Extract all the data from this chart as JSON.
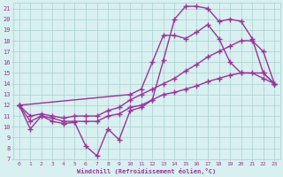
{
  "xlabel": "Windchill (Refroidissement éolien,°C)",
  "xlim": [
    -0.5,
    23.5
  ],
  "ylim": [
    7,
    21.5
  ],
  "yticks": [
    7,
    8,
    9,
    10,
    11,
    12,
    13,
    14,
    15,
    16,
    17,
    18,
    19,
    20,
    21
  ],
  "xticks": [
    0,
    1,
    2,
    3,
    4,
    5,
    6,
    7,
    8,
    9,
    10,
    11,
    12,
    13,
    14,
    15,
    16,
    17,
    18,
    19,
    20,
    21,
    22,
    23
  ],
  "curve_color": "#993399",
  "bg_color": "#d8f0f0",
  "plot_bg_color": "#d8f0f0",
  "grid_color": "#aacece",
  "curves": [
    {
      "x": [
        0,
        1,
        2,
        3,
        4,
        5,
        6,
        7,
        8,
        9,
        10,
        11,
        12,
        13,
        14,
        15,
        16,
        17,
        18,
        19,
        20,
        21,
        22,
        23
      ],
      "y": [
        12,
        9.8,
        11.0,
        10.5,
        10.3,
        10.4,
        8.2,
        7.3,
        9.8,
        8.8,
        11.5,
        11.8,
        12.5,
        16.2,
        20.0,
        21.2,
        21.2,
        21.0,
        19.8,
        20.0,
        19.8,
        18.2,
        15.0,
        14.0
      ]
    },
    {
      "x": [
        0,
        10,
        11,
        12,
        13,
        14,
        15,
        16,
        17,
        18,
        19,
        20,
        22,
        23
      ],
      "y": [
        12,
        13.0,
        13.5,
        16.0,
        18.5,
        18.5,
        18.2,
        18.8,
        19.5,
        18.2,
        16.0,
        15.0,
        15.0,
        14.0
      ]
    },
    {
      "x": [
        0,
        1,
        2,
        3,
        4,
        5,
        6,
        7,
        8,
        9,
        10,
        11,
        12,
        13,
        14,
        15,
        16,
        17,
        18,
        19,
        20,
        21,
        22,
        23
      ],
      "y": [
        12,
        11.0,
        11.2,
        11.0,
        10.8,
        11.0,
        11.0,
        11.0,
        11.5,
        11.8,
        12.5,
        13.0,
        13.5,
        14.0,
        14.5,
        15.2,
        15.8,
        16.5,
        17.0,
        17.5,
        18.0,
        18.0,
        17.0,
        14.0
      ]
    },
    {
      "x": [
        0,
        1,
        2,
        3,
        4,
        5,
        6,
        7,
        8,
        9,
        10,
        11,
        12,
        13,
        14,
        15,
        16,
        17,
        18,
        19,
        20,
        21,
        22,
        23
      ],
      "y": [
        12,
        10.5,
        11.0,
        10.8,
        10.5,
        10.5,
        10.5,
        10.5,
        11.0,
        11.2,
        11.8,
        12.0,
        12.5,
        13.0,
        13.2,
        13.5,
        13.8,
        14.2,
        14.5,
        14.8,
        15.0,
        15.0,
        14.5,
        14.0
      ]
    }
  ],
  "marker": "+",
  "markersize": 4,
  "linewidth": 1.0
}
